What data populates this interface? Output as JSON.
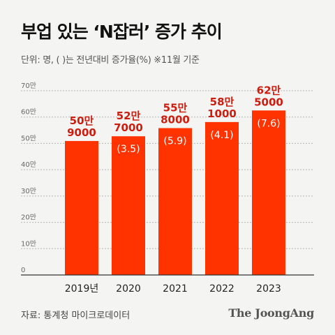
{
  "title": "부업 있는 ‘N잡러’ 증가 추이",
  "unit_note": "단위: 명, ( )는 전년대비 증가율(%)  ※11월 기준",
  "source": "자료: 통계청 마이크로데이터",
  "brand": "The JoongAng",
  "colors": {
    "bar": "#ff3300",
    "value_label": "#cc1d0f",
    "rate_label": "#ffffff",
    "grid": "#b5b5b5",
    "axis": "#333333",
    "tick_text": "#666666"
  },
  "chart_data": {
    "type": "bar",
    "title": "부업 있는 ‘N잡러’ 증가 추이",
    "xlabel": "",
    "ylabel": "",
    "categories": [
      "2019년",
      "2020",
      "2021",
      "2022",
      "2023"
    ],
    "values": [
      509000,
      527000,
      558000,
      581000,
      625000
    ],
    "value_labels": [
      [
        "50만",
        "9000"
      ],
      [
        "52만",
        "7000"
      ],
      [
        "55만",
        "8000"
      ],
      [
        "58만",
        "1000"
      ],
      [
        "62만",
        "5000"
      ]
    ],
    "growth_rate_labels": [
      null,
      "(3.5)",
      "(5.9)",
      "(4.1)",
      "(7.6)"
    ],
    "ylim": [
      0,
      700000
    ],
    "yticks": [
      0,
      100000,
      200000,
      300000,
      400000,
      500000,
      600000,
      700000
    ],
    "ytick_labels": [
      "0",
      "10만",
      "20만",
      "30만",
      "40만",
      "50만",
      "60만",
      "70만"
    ],
    "grid": true,
    "legend": "none"
  }
}
